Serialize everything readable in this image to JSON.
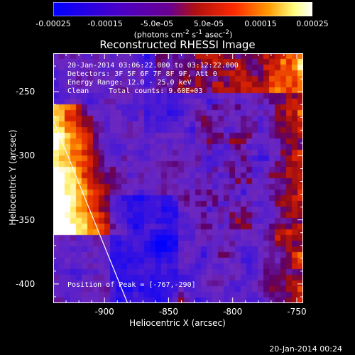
{
  "colorbar": {
    "ticks": [
      "-0.00025",
      "-0.00015",
      "-5.0e-05",
      "5.0e-05",
      "0.00015",
      "0.00025"
    ],
    "tick_values": [
      -0.00025,
      -0.00015,
      -5e-05,
      5e-05,
      0.00015,
      0.00025
    ],
    "range": [
      -0.00025,
      0.00025
    ],
    "units_main": "(photons cm",
    "units_sup1": "-2",
    "units_mid1": " s",
    "units_sup2": "-1",
    "units_mid2": " asec",
    "units_sup3": "-2",
    "units_end": ")",
    "colors": [
      "#0000ff",
      "#4a00c8",
      "#7a00a0",
      "#b01010",
      "#ff2a00",
      "#ff9a00",
      "#ffff80",
      "#ffffff"
    ]
  },
  "chart_data": {
    "type": "heatmap",
    "title": "Reconstructed RHESSI Image",
    "xlabel": "Heliocentric X (arcsec)",
    "ylabel": "Heliocentric Y (arcsec)",
    "xlim": [
      -940,
      -745
    ],
    "ylim": [
      -415,
      -220
    ],
    "xticks": [
      -900,
      -850,
      -800,
      -750
    ],
    "yticks": [
      -250,
      -300,
      -350,
      -400
    ],
    "limb_line": {
      "from": [
        -940,
        -272
      ],
      "to": [
        -882,
        -415
      ]
    },
    "annotations": {
      "time_range": "20-Jan-2014 03:06:22.000 to 03:12:22.000",
      "detectors": "Detectors: 3F 5F 6F 7F 8F 9F, Att 0",
      "energy": "Energy Range: 12.0 - 25.0 keV",
      "method": "Clean",
      "counts": "Total counts: 9.60E+03",
      "peak": "Position of Peak = [-767,-290]"
    }
  },
  "timestamp": "20-Jan-2014 00:24"
}
